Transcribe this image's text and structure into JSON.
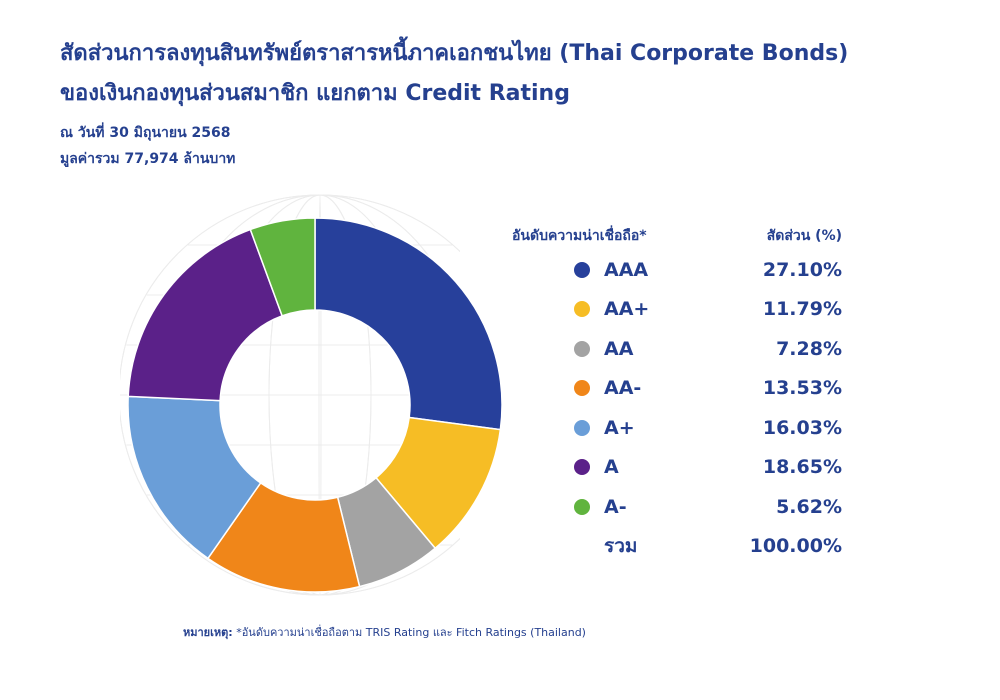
{
  "title": {
    "line1": "สัดส่วนการลงทุนสินทรัพย์ตราสารหนี้ภาคเอกชนไทย (Thai Corporate Bonds)",
    "line2": "ของเงินกองทุนส่วนสมาชิก แยกตาม Credit Rating"
  },
  "subtitle": {
    "date": "ณ วันที่ 30 มิถุนายน 2568",
    "total_value": "มูลค่ารวม 77,974 ล้านบาท"
  },
  "legend": {
    "rating_header": "อันดับความน่าเชื่อถือ*",
    "share_header": "สัดส่วน (%)",
    "total_label": "รวม",
    "total_value": "100.00%"
  },
  "note": {
    "label": "หมายเหตุ:",
    "text": "*อันดับความน่าเชื่อถือตาม TRIS Rating และ Fitch Ratings (Thailand)"
  },
  "chart_data": {
    "type": "pie",
    "donut": true,
    "categories": [
      "AAA",
      "AA+",
      "AA",
      "AA-",
      "A+",
      "A",
      "A-"
    ],
    "values": [
      27.1,
      11.79,
      7.28,
      13.53,
      16.03,
      18.65,
      5.62
    ],
    "value_labels": [
      "27.10%",
      "11.79%",
      "7.28%",
      "13.53%",
      "16.03%",
      "18.65%",
      "5.62%"
    ],
    "colors": [
      "#27409b",
      "#f6bd25",
      "#a3a3a3",
      "#f08619",
      "#6a9ed8",
      "#5b2189",
      "#60b43e"
    ],
    "legend_position": "right"
  }
}
